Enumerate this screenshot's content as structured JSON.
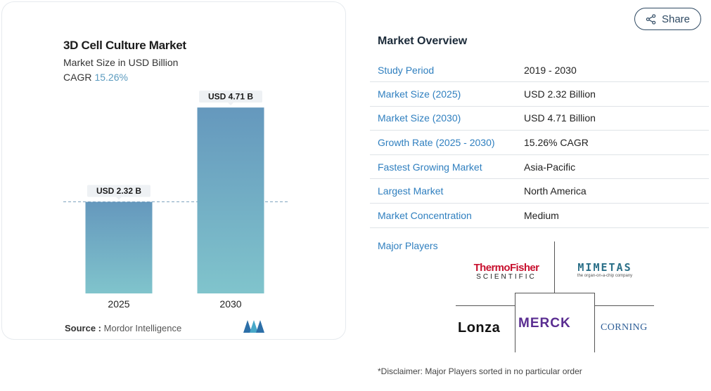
{
  "chart_card": {
    "title": "3D Cell Culture Market",
    "subtitle": "Market Size in USD Billion",
    "cagr_label": "CAGR",
    "cagr_value": "15.26%",
    "source_label": "Source :",
    "source_value": "Mordor Intelligence"
  },
  "chart_data": {
    "type": "bar",
    "title": "3D Cell Culture Market",
    "subtitle": "Market Size in USD Billion",
    "categories": [
      "2025",
      "2030"
    ],
    "values": [
      2.32,
      4.71
    ],
    "data_labels": [
      "USD 2.32 B",
      "USD 4.71 B"
    ],
    "xlabel": "",
    "ylabel": "",
    "ylim": [
      0,
      5.3
    ],
    "reference_line_value": 2.32,
    "bar_color_top": "#6598bd",
    "bar_color_bottom": "#80c4cc",
    "grid": false
  },
  "share": {
    "label": "Share",
    "icon": "share-icon"
  },
  "overview": {
    "title": "Market Overview",
    "rows": [
      {
        "key": "Study Period",
        "value": "2019 - 2030"
      },
      {
        "key": "Market Size (2025)",
        "value": "USD 2.32 Billion"
      },
      {
        "key": "Market Size (2030)",
        "value": "USD 4.71 Billion"
      },
      {
        "key": "Growth Rate (2025 - 2030)",
        "value": "15.26% CAGR"
      },
      {
        "key": "Fastest Growing Market",
        "value": "Asia-Pacific"
      },
      {
        "key": "Largest Market",
        "value": "North America"
      },
      {
        "key": "Market Concentration",
        "value": "Medium"
      }
    ],
    "players_label": "Major Players",
    "players": {
      "thermo_line1": "ThermoFisher",
      "thermo_line2": "SCIENTIFIC",
      "mimetas_line1": "MIMETAS",
      "mimetas_line2": "the organ-on-a-chip company",
      "lonza": "Lonza",
      "merck": "MERCK",
      "corning": "CORNING"
    }
  },
  "disclaimer": "*Disclaimer: Major Players sorted in no particular order",
  "colors": {
    "accent_link": "#2f7fbf",
    "title_dark": "#1c2b3a",
    "share_border": "#2f4a63"
  }
}
